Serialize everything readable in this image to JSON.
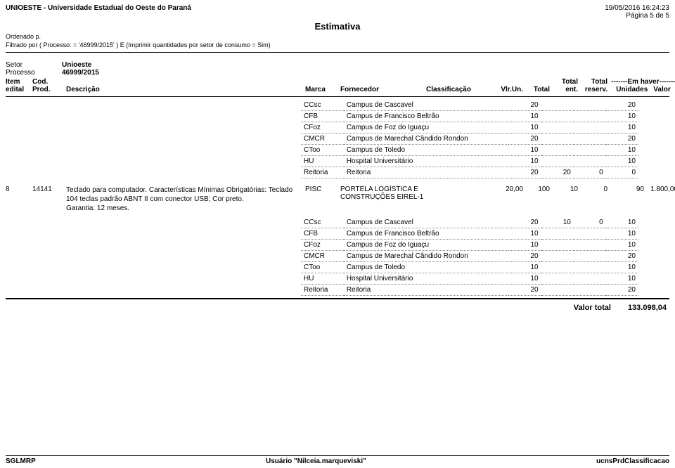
{
  "header": {
    "org": "UNIOESTE - Universidade Estadual do Oeste do Paraná",
    "timestamp": "19/05/2016 16:24:23",
    "page": "Página 5 de 5",
    "title": "Estimativa",
    "ordenado": "Ordenado p.",
    "filtrado": "Filtrado por ( Processo: = '46999/2015' ) E (Imprimir quantidades por setor de consumo = Sim)"
  },
  "info": {
    "setor_label": "Setor",
    "setor": "Unioeste",
    "processo_label": "Processo",
    "processo": "46999/2015"
  },
  "columns": {
    "item_edital": "Item edital",
    "cod_prod": "Cod. Prod.",
    "descricao": "Descrição",
    "marca": "Marca",
    "fornecedor": "Fornecedor",
    "classificacao": "Classificação",
    "vlr_un": "Vlr.Un.",
    "total": "Total",
    "total_ent": "Total ent.",
    "total_reserv": "Total reserv.",
    "em_haver": "-------Em haver-------",
    "unidades": "Unidades",
    "valor": "Valor"
  },
  "detail_block_a": {
    "rows": [
      {
        "code": "CCsc",
        "name": "Campus de Cascavel",
        "v1": "20",
        "v2": "",
        "v3": "",
        "v4": "20"
      },
      {
        "code": "CFB",
        "name": "Campus de Francisco Beltrão",
        "v1": "10",
        "v2": "",
        "v3": "",
        "v4": "10"
      },
      {
        "code": "CFoz",
        "name": "Campus de Foz do Iguaçu",
        "v1": "10",
        "v2": "",
        "v3": "",
        "v4": "10"
      },
      {
        "code": "CMCR",
        "name": "Campus de Marechal Cândido Rondon",
        "v1": "20",
        "v2": "",
        "v3": "",
        "v4": "20"
      },
      {
        "code": "CToo",
        "name": "Campus de Toledo",
        "v1": "10",
        "v2": "",
        "v3": "",
        "v4": "10"
      },
      {
        "code": "HU",
        "name": "Hospital Universitário",
        "v1": "10",
        "v2": "",
        "v3": "",
        "v4": "10"
      },
      {
        "code": "Reitoria",
        "name": "Reitoria",
        "v1": "20",
        "v2": "20",
        "v3": "0",
        "v4": "0"
      }
    ]
  },
  "item": {
    "edital": "8",
    "cod": "14141",
    "descricao": "Teclado para computador. Características Mínimas Obrigatórias: Teclado 104 teclas padrão ABNT II com conector USB;  Cor preto.\nGarantia: 12 meses.",
    "marca": "PISC",
    "fornecedor": "PORTELA LOGÍSTICA E CONSTRUÇÕES EIREL-1",
    "classificacao": "",
    "vlr_un": "20,00",
    "total": "100",
    "total_ent": "10",
    "total_reserv": "0",
    "unidades": "90",
    "valor": "1.800,00"
  },
  "detail_block_b": {
    "rows": [
      {
        "code": "CCsc",
        "name": "Campus de Cascavel",
        "v1": "20",
        "v2": "10",
        "v3": "0",
        "v4": "10"
      },
      {
        "code": "CFB",
        "name": "Campus de Francisco Beltrão",
        "v1": "10",
        "v2": "",
        "v3": "",
        "v4": "10"
      },
      {
        "code": "CFoz",
        "name": "Campus de Foz do Iguaçu",
        "v1": "10",
        "v2": "",
        "v3": "",
        "v4": "10"
      },
      {
        "code": "CMCR",
        "name": "Campus de Marechal Cândido Rondon",
        "v1": "20",
        "v2": "",
        "v3": "",
        "v4": "20"
      },
      {
        "code": "CToo",
        "name": "Campus de Toledo",
        "v1": "10",
        "v2": "",
        "v3": "",
        "v4": "10"
      },
      {
        "code": "HU",
        "name": "Hospital Universitário",
        "v1": "10",
        "v2": "",
        "v3": "",
        "v4": "10"
      },
      {
        "code": "Reitoria",
        "name": "Reitoria",
        "v1": "20",
        "v2": "",
        "v3": "",
        "v4": "20"
      }
    ]
  },
  "totals": {
    "label": "Valor total",
    "value": "133.098,04"
  },
  "footer": {
    "left": "SGLMRP",
    "center": "Usuário \"Nilceia.marqueviski\"",
    "right": "ucnsPrdClassificacao"
  }
}
